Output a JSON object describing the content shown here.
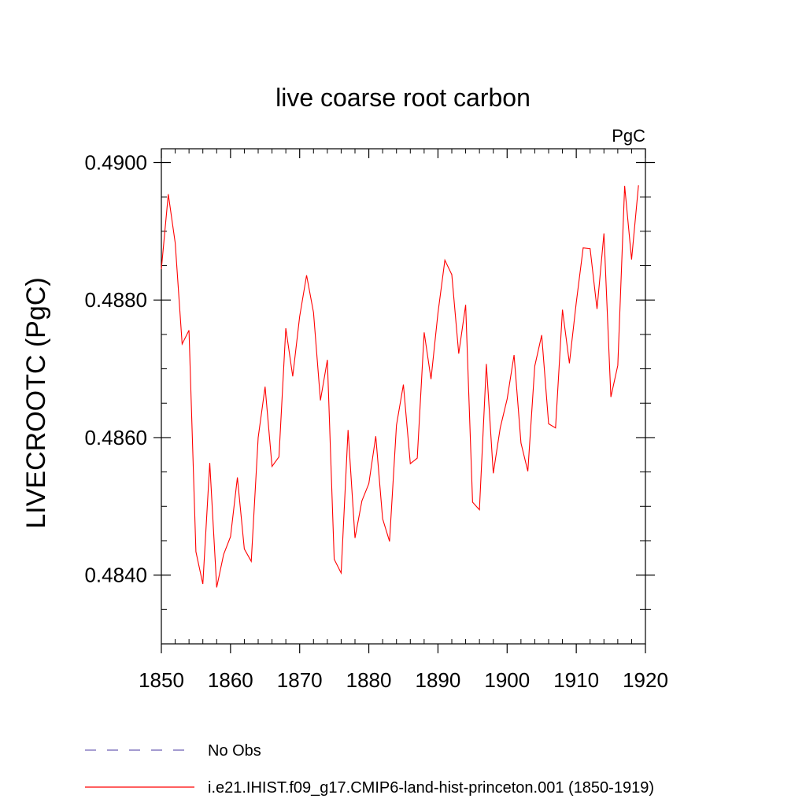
{
  "chart_data": {
    "type": "line",
    "title": "live coarse root carbon",
    "units_label": "PgC",
    "ylabel": "LIVECROOTC  (PgC)",
    "xlabel": "",
    "xlim": [
      1850,
      1920
    ],
    "ylim": [
      0.483,
      0.4902
    ],
    "x_ticks": [
      1850,
      1860,
      1870,
      1880,
      1890,
      1900,
      1910,
      1920
    ],
    "x_tick_labels": [
      "1850",
      "1860",
      "1870",
      "1880",
      "1890",
      "1900",
      "1910",
      "1920"
    ],
    "y_ticks": [
      0.484,
      0.486,
      0.488,
      0.49
    ],
    "y_tick_labels": [
      "0.4840",
      "0.4860",
      "0.4880",
      "0.4900"
    ],
    "grid": false,
    "legend_position": "bottom",
    "series": [
      {
        "name": "i.e21.IHIST.f09_g17.CMIP6-land-hist-princeton.001 (1850-1919)",
        "color": "#ff0000",
        "line_style": "solid",
        "x": [
          1850,
          1851,
          1852,
          1853,
          1854,
          1855,
          1856,
          1857,
          1858,
          1859,
          1860,
          1861,
          1862,
          1863,
          1864,
          1865,
          1866,
          1867,
          1868,
          1869,
          1870,
          1871,
          1872,
          1873,
          1874,
          1875,
          1876,
          1877,
          1878,
          1879,
          1880,
          1881,
          1882,
          1883,
          1884,
          1885,
          1886,
          1887,
          1888,
          1889,
          1890,
          1891,
          1892,
          1893,
          1894,
          1895,
          1896,
          1897,
          1898,
          1899,
          1900,
          1901,
          1902,
          1903,
          1904,
          1905,
          1906,
          1907,
          1908,
          1909,
          1910,
          1911,
          1912,
          1913,
          1914,
          1915,
          1916,
          1917,
          1918,
          1919
        ],
        "values": [
          0.48845,
          0.48954,
          0.48883,
          0.48736,
          0.48756,
          0.48434,
          0.48387,
          0.48563,
          0.48382,
          0.4843,
          0.48456,
          0.48542,
          0.48438,
          0.4842,
          0.486,
          0.48674,
          0.48558,
          0.48572,
          0.48759,
          0.48689,
          0.48776,
          0.48836,
          0.48782,
          0.48654,
          0.48713,
          0.48423,
          0.48403,
          0.48611,
          0.48454,
          0.48508,
          0.48533,
          0.48602,
          0.48482,
          0.48449,
          0.48618,
          0.48677,
          0.48562,
          0.4857,
          0.48753,
          0.48685,
          0.48781,
          0.48858,
          0.48837,
          0.48722,
          0.48793,
          0.48506,
          0.48495,
          0.48707,
          0.48548,
          0.48614,
          0.48656,
          0.4872,
          0.48592,
          0.48551,
          0.48704,
          0.48749,
          0.4862,
          0.48614,
          0.48786,
          0.48708,
          0.48796,
          0.48876,
          0.48875,
          0.48787,
          0.48897,
          0.48659,
          0.48705,
          0.48966,
          0.48859,
          0.48967
        ]
      }
    ],
    "reference": {
      "name": "No Obs",
      "color": "#6c5fb3",
      "line_style": "dashed"
    }
  }
}
